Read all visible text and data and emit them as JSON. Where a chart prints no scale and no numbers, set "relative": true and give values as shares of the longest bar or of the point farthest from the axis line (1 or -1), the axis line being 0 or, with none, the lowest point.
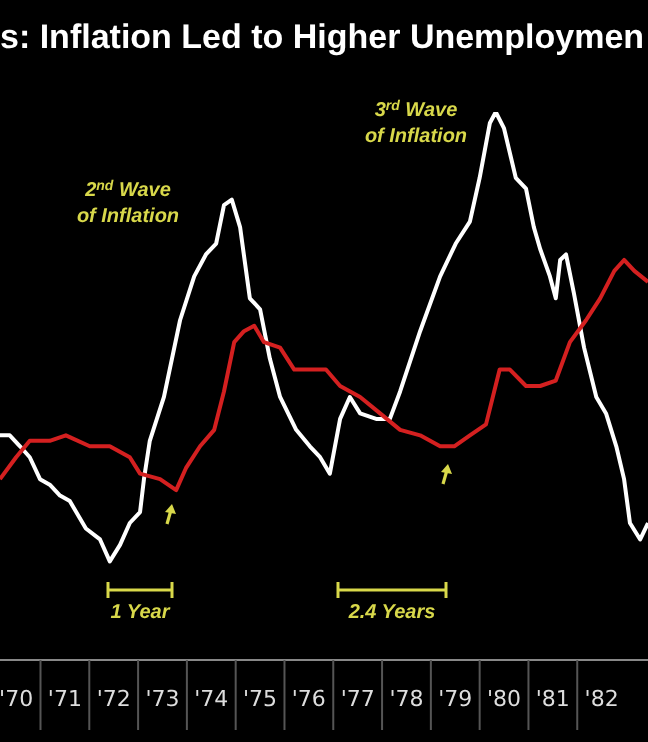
{
  "chart_data": {
    "type": "line",
    "title": "s: Inflation Led to Higher Unemploymen",
    "relative": true,
    "annotations": [
      "2$^{nd}$ Wave of Inflation",
      "3$^{rd}$ Wave of Inflation",
      "1 Year",
      "2.4 Years"
    ],
    "xlim": [
      69.67,
      82.95
    ],
    "xticks": [
      {
        "value": 70,
        "label": "'70"
      },
      {
        "value": 71,
        "label": "'71"
      },
      {
        "value": 72,
        "label": "'72"
      },
      {
        "value": 73,
        "label": "'73"
      },
      {
        "value": 74,
        "label": "'74"
      },
      {
        "value": 75,
        "label": "'75"
      },
      {
        "value": 76,
        "label": "'76"
      },
      {
        "value": 77,
        "label": "'77"
      },
      {
        "value": 78,
        "label": "'78"
      },
      {
        "value": 79,
        "label": "'79"
      },
      {
        "value": 80,
        "label": "'80"
      },
      {
        "value": 81,
        "label": "'81"
      },
      {
        "value": 82,
        "label": "'82"
      }
    ],
    "series": [
      {
        "color": "#ffffff",
        "x": [
          69.67,
          69.87,
          70.08,
          70.28,
          70.49,
          70.69,
          70.9,
          71.1,
          71.43,
          71.72,
          71.92,
          72.13,
          72.33,
          72.54,
          72.62,
          72.74,
          73.03,
          73.36,
          73.65,
          73.89,
          74.1,
          74.26,
          74.42,
          74.59,
          74.79,
          75.0,
          75.2,
          75.41,
          75.74,
          76.02,
          76.23,
          76.43,
          76.64,
          76.84,
          77.05,
          77.38,
          77.66,
          77.87,
          78.28,
          78.69,
          79.01,
          79.3,
          79.5,
          79.71,
          79.83,
          80.0,
          80.24,
          80.45,
          80.61,
          80.74,
          80.94,
          81.06,
          81.15,
          81.27,
          81.43,
          81.64,
          81.89,
          82.09,
          82.3,
          82.46,
          82.58,
          82.79,
          82.95
        ],
        "values": [
          0.41,
          0.41,
          0.39,
          0.37,
          0.33,
          0.32,
          0.3,
          0.29,
          0.24,
          0.22,
          0.18,
          0.21,
          0.25,
          0.27,
          0.33,
          0.4,
          0.48,
          0.62,
          0.7,
          0.74,
          0.76,
          0.83,
          0.84,
          0.79,
          0.66,
          0.64,
          0.55,
          0.48,
          0.42,
          0.39,
          0.37,
          0.34,
          0.44,
          0.48,
          0.45,
          0.44,
          0.44,
          0.49,
          0.6,
          0.7,
          0.76,
          0.8,
          0.88,
          0.98,
          1,
          0.97,
          0.88,
          0.86,
          0.79,
          0.75,
          0.7,
          0.66,
          0.73,
          0.74,
          0.67,
          0.57,
          0.48,
          0.45,
          0.39,
          0.33,
          0.25,
          0.22,
          0.25
        ]
      },
      {
        "color": "#d42020",
        "x": [
          69.67,
          70.0,
          70.28,
          70.69,
          71.02,
          71.51,
          71.92,
          72.33,
          72.54,
          72.95,
          73.28,
          73.48,
          73.77,
          74.06,
          74.26,
          74.47,
          74.67,
          74.88,
          75.08,
          75.41,
          75.7,
          76.02,
          76.35,
          76.64,
          77.05,
          77.46,
          77.87,
          78.28,
          78.69,
          78.98,
          79.3,
          79.63,
          79.91,
          80.12,
          80.45,
          80.74,
          81.06,
          81.35,
          81.68,
          81.97,
          82.26,
          82.46,
          82.67,
          82.95
        ],
        "values": [
          0.33,
          0.37,
          0.4,
          0.4,
          0.41,
          0.39,
          0.39,
          0.37,
          0.34,
          0.33,
          0.31,
          0.35,
          0.39,
          0.42,
          0.49,
          0.58,
          0.6,
          0.61,
          0.58,
          0.57,
          0.53,
          0.53,
          0.53,
          0.5,
          0.48,
          0.45,
          0.42,
          0.41,
          0.39,
          0.39,
          0.41,
          0.43,
          0.53,
          0.53,
          0.5,
          0.5,
          0.51,
          0.58,
          0.62,
          0.66,
          0.71,
          0.73,
          0.71,
          0.69
        ]
      }
    ]
  }
}
